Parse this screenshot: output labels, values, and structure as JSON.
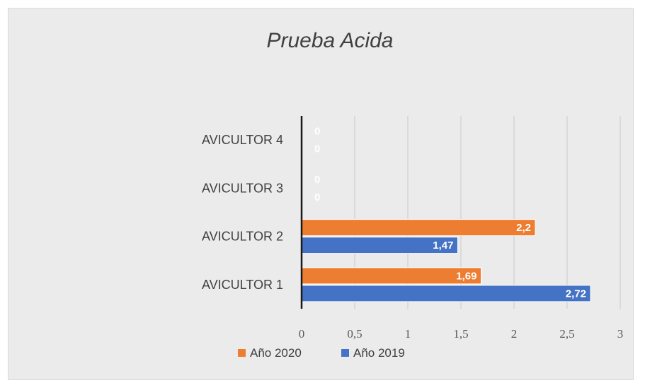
{
  "chart_data": {
    "type": "bar",
    "orientation": "horizontal",
    "title": "Prueba Acida",
    "categories": [
      "AVICULTOR 1",
      "AVICULTOR 2",
      "AVICULTOR 3",
      "AVICULTOR 4"
    ],
    "series": [
      {
        "name": "Año 2020",
        "values": [
          1.69,
          2.2,
          0,
          0
        ],
        "labels": [
          "1,69",
          "2,2",
          "0",
          "0"
        ],
        "color": "#ed7d31"
      },
      {
        "name": "Año 2019",
        "values": [
          2.72,
          1.47,
          0,
          0
        ],
        "labels": [
          "2,72",
          "1,47",
          "0",
          "0"
        ],
        "color": "#4472c4"
      }
    ],
    "x_ticks": [
      0,
      0.5,
      1,
      1.5,
      2,
      2.5,
      3
    ],
    "x_tick_labels": [
      "0",
      "0,5",
      "1",
      "1,5",
      "2",
      "2,5",
      "3"
    ],
    "xlim": [
      0,
      3
    ],
    "xlabel": "",
    "ylabel": "",
    "grid": "vertical",
    "legend_position": "bottom",
    "background": "#ebebeb"
  }
}
